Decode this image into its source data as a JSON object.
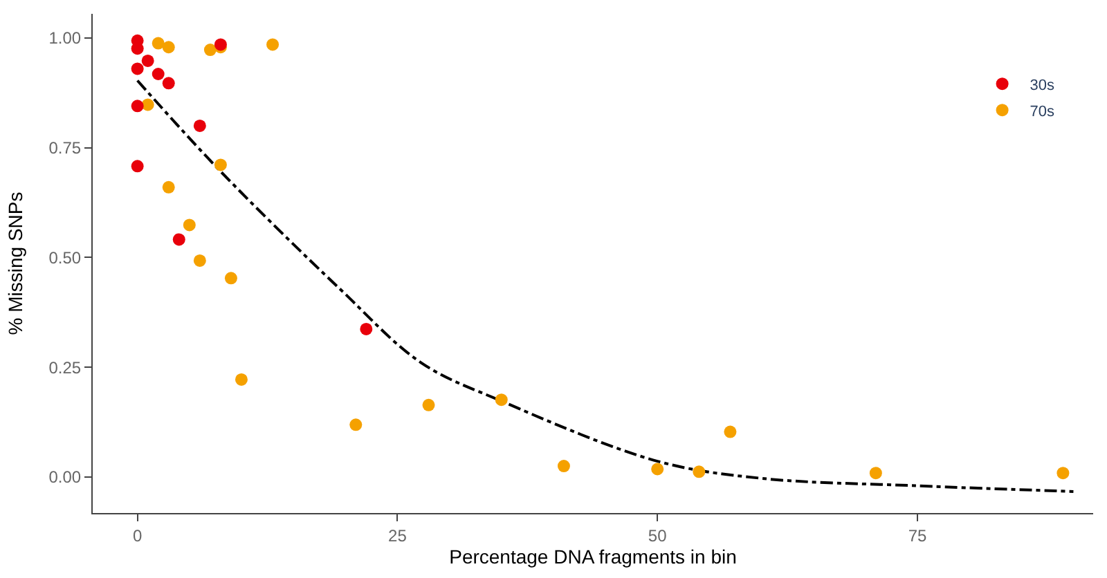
{
  "chart_data": {
    "type": "scatter",
    "xlabel": "Percentage DNA fragments in bin",
    "ylabel": "% Missing SNPs",
    "xlim": [
      -4.3,
      91.9
    ],
    "ylim": [
      -0.082,
      1.055
    ],
    "xticks": [
      0,
      25,
      50,
      75
    ],
    "yticks": [
      {
        "value": 0,
        "label": "0.00"
      },
      {
        "value": 0.25,
        "label": "0.25"
      },
      {
        "value": 0.5,
        "label": "0.50"
      },
      {
        "value": 0.75,
        "label": "0.75"
      },
      {
        "value": 1,
        "label": "1.00"
      }
    ],
    "legend": "top right",
    "series": [
      {
        "name": "30s",
        "color": "#e8000b",
        "marker": "circle",
        "x": [
          0,
          0,
          0,
          0,
          0,
          1,
          2,
          3,
          8,
          6,
          4,
          22
        ],
        "values": [
          0.994,
          0.976,
          0.93,
          0.845,
          0.708,
          0.948,
          0.918,
          0.897,
          0.985,
          0.8,
          0.541,
          0.337
        ]
      },
      {
        "name": "70s",
        "color": "#f5a100",
        "marker": "circle",
        "x": [
          2,
          3,
          7,
          8,
          13,
          1,
          8,
          3,
          5,
          6,
          9,
          10,
          21,
          28,
          35,
          41,
          50,
          54,
          57,
          71,
          89
        ],
        "values": [
          0.988,
          0.979,
          0.973,
          0.979,
          0.985,
          0.848,
          0.711,
          0.66,
          0.574,
          0.493,
          0.453,
          0.222,
          0.119,
          0.164,
          0.176,
          0.025,
          0.018,
          0.012,
          0.103,
          0.009,
          0.009
        ]
      },
      {
        "type": "line",
        "color": "#000000",
        "line_style": "dashed",
        "x": [
          0,
          8,
          19.4,
          27.3,
          35,
          50,
          60,
          75,
          90
        ],
        "values": [
          0.903,
          0.696,
          0.43,
          0.26,
          0.173,
          0.036,
          -0.003,
          -0.02,
          -0.033
        ]
      }
    ]
  }
}
